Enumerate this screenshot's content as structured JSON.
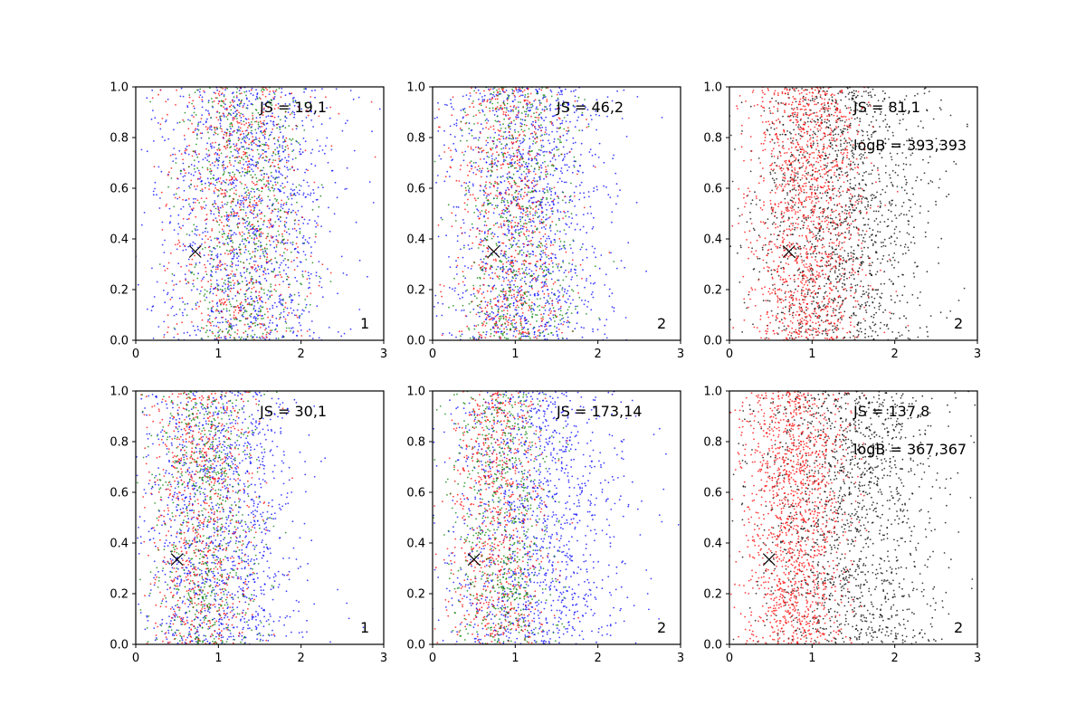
{
  "chart_data": [
    {
      "type": "scatter",
      "xlim": [
        0,
        3
      ],
      "ylim": [
        0,
        1
      ],
      "xticks": [
        "0",
        "1",
        "2",
        "3"
      ],
      "yticks": [
        "0.0",
        "0.2",
        "0.4",
        "0.6",
        "0.8",
        "1.0"
      ],
      "annotations": [
        "JS = 19,1"
      ],
      "corner_label": "1",
      "marker": {
        "x": 0.72,
        "y": 0.35,
        "symbol": "x"
      },
      "point_clouds": [
        {
          "color": "#0000ff",
          "n": 1300,
          "x_center": 1.35,
          "x_spread": 0.55
        },
        {
          "color": "#ff0000",
          "n": 750,
          "x_center": 1.25,
          "x_spread": 0.42
        },
        {
          "color": "#008000",
          "n": 650,
          "x_center": 1.3,
          "x_spread": 0.38
        }
      ]
    },
    {
      "type": "scatter",
      "xlim": [
        0,
        3
      ],
      "ylim": [
        0,
        1
      ],
      "xticks": [
        "0",
        "1",
        "2",
        "3"
      ],
      "yticks": [
        "0.0",
        "0.2",
        "0.4",
        "0.6",
        "0.8",
        "1.0"
      ],
      "annotations": [
        "JS = 46,2"
      ],
      "corner_label": "2",
      "marker": {
        "x": 0.74,
        "y": 0.35,
        "symbol": "x"
      },
      "point_clouds": [
        {
          "color": "#0000ff",
          "n": 1300,
          "x_center": 1.15,
          "x_spread": 0.5
        },
        {
          "color": "#ff0000",
          "n": 750,
          "x_center": 0.95,
          "x_spread": 0.35
        },
        {
          "color": "#008000",
          "n": 650,
          "x_center": 1.05,
          "x_spread": 0.35
        }
      ]
    },
    {
      "type": "scatter",
      "xlim": [
        0,
        3
      ],
      "ylim": [
        0,
        1
      ],
      "xticks": [
        "0",
        "1",
        "2",
        "3"
      ],
      "yticks": [
        "0.0",
        "0.2",
        "0.4",
        "0.6",
        "0.8",
        "1.0"
      ],
      "annotations": [
        "JS = 81,1",
        "logB = 393,393"
      ],
      "corner_label": "2",
      "marker": {
        "x": 0.72,
        "y": 0.35,
        "symbol": "x"
      },
      "point_clouds": [
        {
          "color": "#000000",
          "n": 1500,
          "x_center": 1.35,
          "x_spread": 0.55
        },
        {
          "color": "#ff0000",
          "n": 1400,
          "x_center": 0.95,
          "x_spread": 0.35
        }
      ]
    },
    {
      "type": "scatter",
      "xlim": [
        0,
        3
      ],
      "ylim": [
        0,
        1
      ],
      "xticks": [
        "0",
        "1",
        "2",
        "3"
      ],
      "yticks": [
        "0.0",
        "0.2",
        "0.4",
        "0.6",
        "0.8",
        "1.0"
      ],
      "annotations": [
        "JS = 30,1"
      ],
      "corner_label": "1",
      "marker": {
        "x": 0.5,
        "y": 0.335,
        "symbol": "x"
      },
      "point_clouds": [
        {
          "color": "#0000ff",
          "n": 1300,
          "x_center": 1.0,
          "x_spread": 0.5
        },
        {
          "color": "#ff0000",
          "n": 750,
          "x_center": 0.8,
          "x_spread": 0.32
        },
        {
          "color": "#008000",
          "n": 650,
          "x_center": 0.85,
          "x_spread": 0.32
        }
      ]
    },
    {
      "type": "scatter",
      "xlim": [
        0,
        3
      ],
      "ylim": [
        0,
        1
      ],
      "xticks": [
        "0",
        "1",
        "2",
        "3"
      ],
      "yticks": [
        "0.0",
        "0.2",
        "0.4",
        "0.6",
        "0.8",
        "1.0"
      ],
      "annotations": [
        "JS = 173,14"
      ],
      "corner_label": "2",
      "marker": {
        "x": 0.5,
        "y": 0.335,
        "symbol": "x"
      },
      "point_clouds": [
        {
          "color": "#0000ff",
          "n": 1300,
          "x_center": 1.25,
          "x_spread": 0.55
        },
        {
          "color": "#ff0000",
          "n": 750,
          "x_center": 0.75,
          "x_spread": 0.3
        },
        {
          "color": "#008000",
          "n": 650,
          "x_center": 0.85,
          "x_spread": 0.3
        }
      ]
    },
    {
      "type": "scatter",
      "xlim": [
        0,
        3
      ],
      "ylim": [
        0,
        1
      ],
      "xticks": [
        "0",
        "1",
        "2",
        "3"
      ],
      "yticks": [
        "0.0",
        "0.2",
        "0.4",
        "0.6",
        "0.8",
        "1.0"
      ],
      "annotations": [
        "JS = 137,8",
        "logB = 367,367"
      ],
      "corner_label": "2",
      "marker": {
        "x": 0.48,
        "y": 0.335,
        "symbol": "x"
      },
      "point_clouds": [
        {
          "color": "#000000",
          "n": 1500,
          "x_center": 1.45,
          "x_spread": 0.55
        },
        {
          "color": "#ff0000",
          "n": 1400,
          "x_center": 0.8,
          "x_spread": 0.32
        }
      ]
    }
  ]
}
